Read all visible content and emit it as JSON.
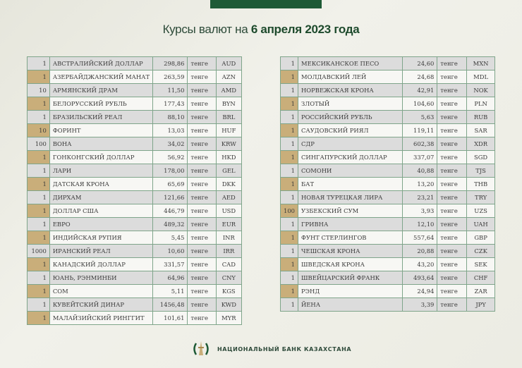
{
  "header": {
    "title_prefix": "Курсы валют на ",
    "title_date": "6 апреля 2023 года"
  },
  "currency_unit": "тенге",
  "colors": {
    "brand": "#1e5a36",
    "highlight": "#c9ae7a"
  },
  "left": [
    [
      "1",
      "АВСТРАЛИЙСКИЙ ДОЛЛАР",
      "298,86",
      "AUD"
    ],
    [
      "1",
      "АЗЕРБАЙДЖАНСКИЙ МАНАТ",
      "263,59",
      "AZN"
    ],
    [
      "10",
      "АРМЯНСКИЙ  ДРАМ",
      "11,50",
      "AMD"
    ],
    [
      "1",
      "БЕЛОРУССКИЙ РУБЛЬ",
      "177,43",
      "BYN"
    ],
    [
      "1",
      "БРАЗИЛЬСКИЙ РЕАЛ",
      "88,10",
      "BRL"
    ],
    [
      "10",
      "ФОРИНТ",
      "13,03",
      "HUF"
    ],
    [
      "100",
      "ВОНА",
      "34,02",
      "KRW"
    ],
    [
      "1",
      "ГОНКОНГСКИЙ ДОЛЛАР",
      "56,92",
      "HKD"
    ],
    [
      "1",
      "ЛАРИ",
      "178,00",
      "GEL"
    ],
    [
      "1",
      "ДАТСКАЯ КРОНА",
      "65,69",
      "DKK"
    ],
    [
      "1",
      "ДИРХАМ",
      "121,66",
      "AED"
    ],
    [
      "1",
      "ДОЛЛАР США",
      "446,79",
      "USD"
    ],
    [
      "1",
      "ЕВРО",
      "489,32",
      "EUR"
    ],
    [
      "1",
      "ИНДИЙСКАЯ РУПИЯ",
      "5,45",
      "INR"
    ],
    [
      "1000",
      "ИРАНСКИЙ РЕАЛ",
      "10,60",
      "IRR"
    ],
    [
      "1",
      "КАНАДСКИЙ ДОЛЛАР",
      "331,57",
      "CAD"
    ],
    [
      "1",
      "ЮАНЬ, РЭНМИНБИ",
      "64,96",
      "CNY"
    ],
    [
      "1",
      "СОМ",
      "5,11",
      "KGS"
    ],
    [
      "1",
      "КУВЕЙТСКИЙ ДИНАР",
      "1456,48",
      "KWD"
    ],
    [
      "1",
      "МАЛАЙЗИЙСКИЙ РИНГГИТ",
      "101,61",
      "MYR"
    ]
  ],
  "right": [
    [
      "1",
      "МЕКСИКАНСКОЕ ПЕСО",
      "24,60",
      "MXN"
    ],
    [
      "1",
      "МОЛДАВСКИЙ ЛЕЙ",
      "24,68",
      "MDL"
    ],
    [
      "1",
      "НОРВЕЖСКАЯ КРОНА",
      "42,91",
      "NOK"
    ],
    [
      "1",
      "ЗЛОТЫЙ",
      "104,60",
      "PLN"
    ],
    [
      "1",
      "РОССИЙСКИЙ РУБЛЬ",
      "5,63",
      "RUB"
    ],
    [
      "1",
      "САУДОВСКИЙ РИЯЛ",
      "119,11",
      "SAR"
    ],
    [
      "1",
      "СДР",
      "602,38",
      "XDR"
    ],
    [
      "1",
      "СИНГАПУРСКИЙ ДОЛЛАР",
      "337,07",
      "SGD"
    ],
    [
      "1",
      "СОМОНИ",
      "40,88",
      "TJS"
    ],
    [
      "1",
      "БАТ",
      "13,20",
      "THB"
    ],
    [
      "1",
      "НОВАЯ ТУРЕЦКАЯ ЛИРА",
      "23,21",
      "TRY"
    ],
    [
      "100",
      "УЗБЕКСКИЙ СУМ",
      "3,93",
      "UZS"
    ],
    [
      "1",
      "ГРИВНА",
      "12,10",
      "UAH"
    ],
    [
      "1",
      "ФУНТ СТЕРЛИНГОВ",
      "557,64",
      "GBP"
    ],
    [
      "1",
      "ЧЕШСКАЯ КРОНА",
      "20,88",
      "CZK"
    ],
    [
      "1",
      "ШВЕДСКАЯ КРОНА",
      "43,20",
      "SEK"
    ],
    [
      "1",
      "ШВЕЙЦАРСКИЙ ФРАНК",
      "493,64",
      "CHF"
    ],
    [
      "1",
      "РЭНД",
      "24,94",
      "ZAR"
    ],
    [
      "1",
      "ЙЕНА",
      "3,39",
      "JPY"
    ]
  ],
  "footer": {
    "bank_name": "НАЦИОНАЛЬНЫЙ БАНК КАЗАХСТАНА"
  }
}
